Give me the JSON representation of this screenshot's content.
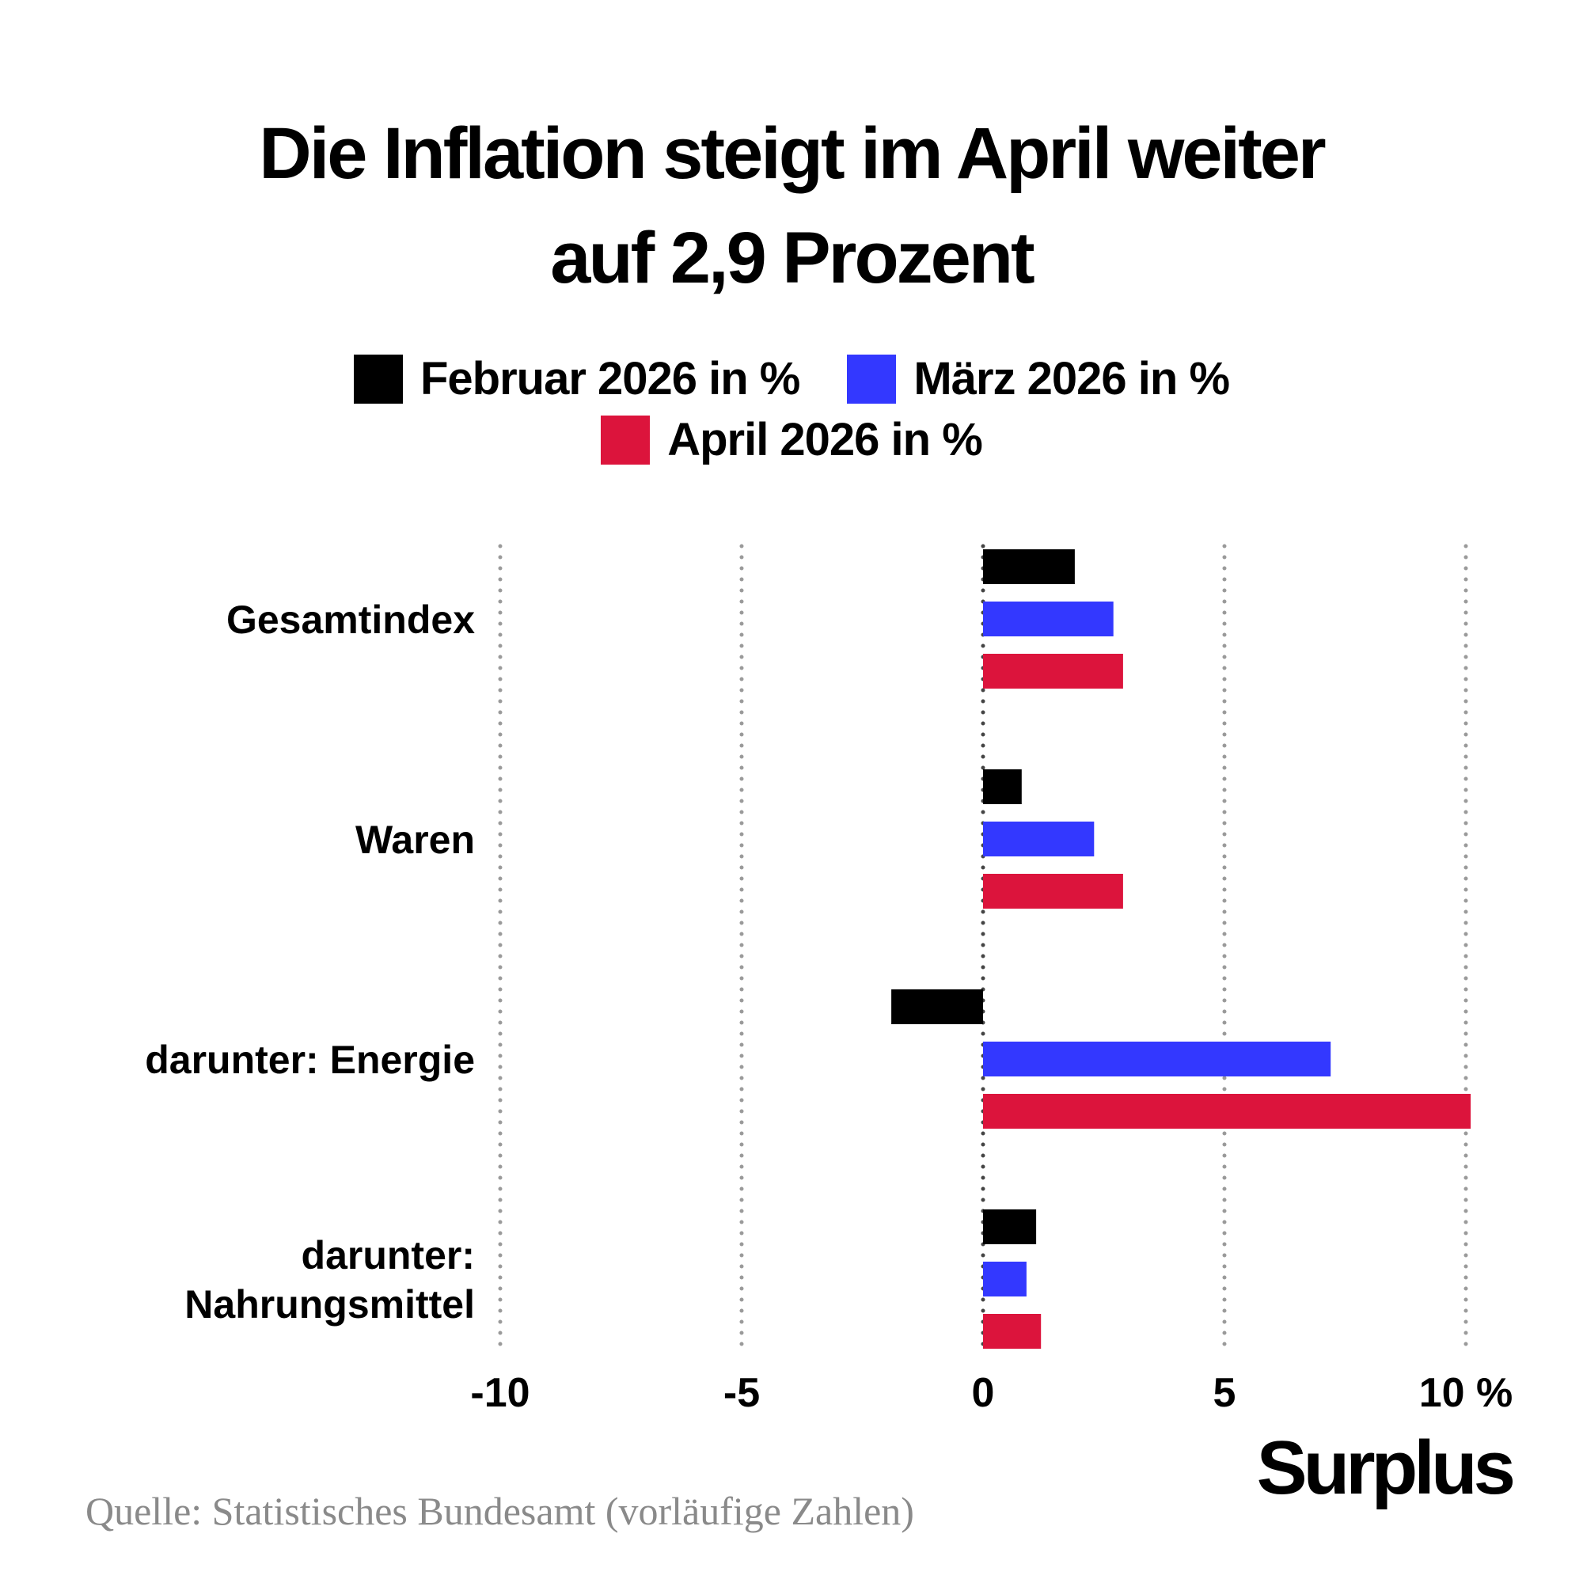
{
  "header": {
    "title_line1": "Die Inflation steigt im April weiter",
    "title_line2": "auf 2,9 Prozent"
  },
  "legend": [
    {
      "label": "Februar 2026 in %",
      "color": "#000000"
    },
    {
      "label": "März 2026 in %",
      "color": "#3338ff"
    },
    {
      "label": "April 2026 in %",
      "color": "#dc143c"
    }
  ],
  "chart_data": {
    "type": "bar",
    "orientation": "horizontal",
    "categories": [
      "Gesamtindex",
      "Waren",
      "darunter: Energie",
      "darunter: Nahrungsmittel"
    ],
    "category_lines": [
      [
        "Gesamtindex"
      ],
      [
        "Waren"
      ],
      [
        "darunter: Energie"
      ],
      [
        "darunter:",
        "Nahrungsmittel"
      ]
    ],
    "series": [
      {
        "name": "Februar 2026 in %",
        "color": "#000000",
        "values": [
          1.9,
          0.8,
          -1.9,
          1.1
        ]
      },
      {
        "name": "März 2026 in %",
        "color": "#3338ff",
        "values": [
          2.7,
          2.3,
          7.2,
          0.9
        ]
      },
      {
        "name": "April 2026 in %",
        "color": "#dc143c",
        "values": [
          2.9,
          2.9,
          10.1,
          1.2
        ]
      }
    ],
    "xlim": [
      -10,
      10
    ],
    "ticks": [
      -10,
      -5,
      0,
      5,
      10
    ],
    "tick_labels": [
      "-10",
      "-5",
      "0",
      "5",
      "10 %"
    ],
    "grid": true,
    "legend_position": "top"
  },
  "footer": {
    "source": "Quelle: Statistisches Bundesamt (vorläufige Zahlen)",
    "brand": "Surplus"
  }
}
